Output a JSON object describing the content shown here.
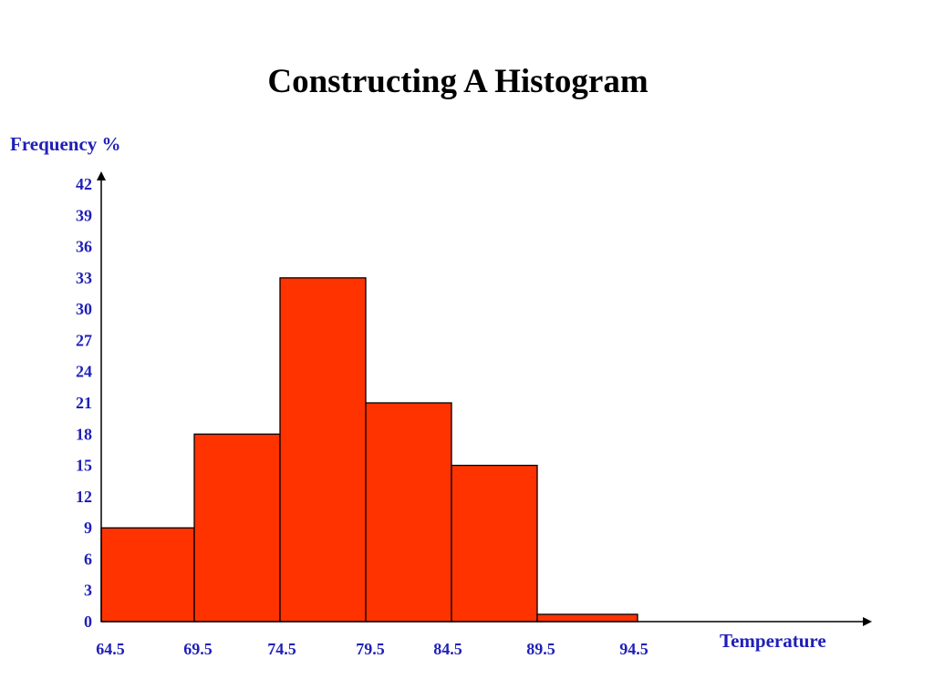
{
  "chart_data": {
    "type": "bar",
    "title": "Constructing A Histogram",
    "ylabel": "Frequency %",
    "xlabel": "Temperature",
    "bin_edges": [
      64.5,
      69.5,
      74.5,
      79.5,
      84.5,
      89.5,
      94.5
    ],
    "bins": [
      {
        "from": 64.5,
        "to": 69.5,
        "value": 9
      },
      {
        "from": 69.5,
        "to": 74.5,
        "value": 18
      },
      {
        "from": 74.5,
        "to": 79.5,
        "value": 33
      },
      {
        "from": 79.5,
        "to": 84.5,
        "value": 21
      },
      {
        "from": 84.5,
        "to": 89.5,
        "value": 15
      },
      {
        "from": 89.5,
        "to": 94.5,
        "value": 0.7
      }
    ],
    "yticks": [
      0,
      3,
      6,
      9,
      12,
      15,
      18,
      21,
      24,
      27,
      30,
      33,
      36,
      39,
      42
    ],
    "xtick_labels": [
      "64.5",
      "69.5",
      "74.5",
      "79.5",
      "84.5",
      "89.5",
      "94.5"
    ],
    "ylim": [
      0,
      42
    ],
    "bar_color": "#ff3300",
    "label_color": "#1f1fb8",
    "grid": false
  }
}
